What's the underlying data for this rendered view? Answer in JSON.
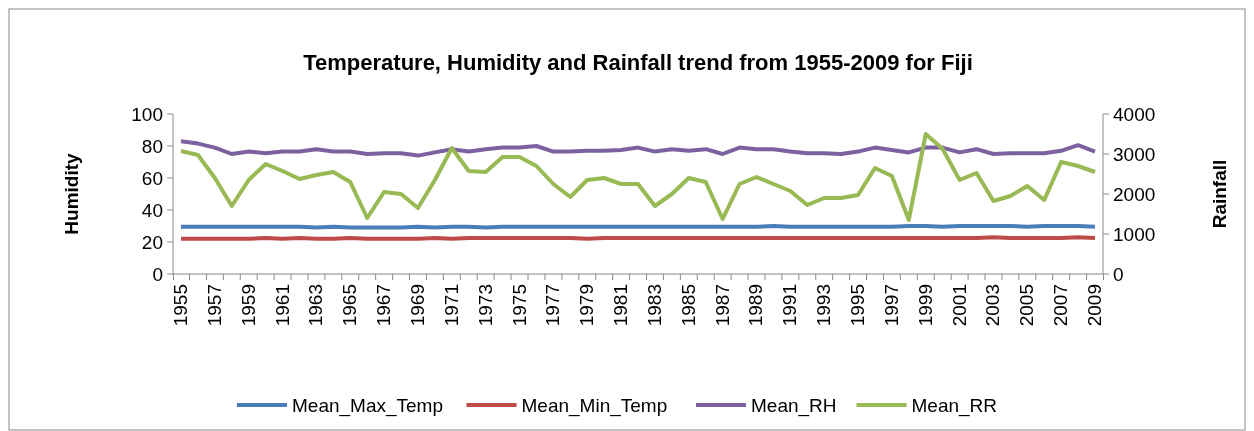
{
  "chart_data": {
    "type": "line",
    "title": "Temperature, Humidity and Rainfall trend from 1955-2009 for Fiji",
    "ylabel": "Humidity",
    "y2label": "Rainfall",
    "categories": [
      "1955",
      null,
      "1957",
      null,
      "1959",
      null,
      "1961",
      null,
      "1963",
      null,
      "1965",
      null,
      "1967",
      null,
      "1969",
      null,
      "1971",
      null,
      "1973",
      null,
      "1975",
      null,
      "1977",
      null,
      "1979",
      null,
      "1981",
      null,
      "1983",
      null,
      "1985",
      null,
      "1987",
      null,
      "1989",
      null,
      "1991",
      null,
      "1993",
      null,
      "1995",
      null,
      "1997",
      null,
      "1999",
      null,
      "2001",
      null,
      "2003",
      null,
      "2005",
      null,
      "2007",
      null,
      "2009"
    ],
    "ylim": [
      0,
      100
    ],
    "yticks": [
      0,
      20,
      40,
      60,
      80,
      100
    ],
    "y2lim": [
      0,
      4000
    ],
    "y2ticks": [
      0,
      1000,
      2000,
      3000,
      4000
    ],
    "grid": false,
    "legend": "bottom",
    "marker": "none",
    "line_style": "solid",
    "series": [
      {
        "name": "Mean_Max_Temp",
        "color": "#4a7ebb",
        "values": [
          29.5,
          29.5,
          29.5,
          29.5,
          29.5,
          29.5,
          29.5,
          29.5,
          29,
          29.5,
          29,
          29,
          29,
          29,
          29.5,
          29,
          29.5,
          29.5,
          29,
          29.5,
          29.5,
          29.5,
          29.5,
          29.5,
          29.5,
          29.5,
          29.5,
          29.5,
          29.5,
          29.5,
          29.5,
          29.5,
          29.5,
          29.5,
          29.5,
          30,
          29.5,
          29.5,
          29.5,
          29.5,
          29.5,
          29.5,
          29.5,
          30,
          30,
          29.5,
          30,
          30,
          30,
          30,
          29.5,
          30,
          30,
          30,
          29.5
        ]
      },
      {
        "name": "Mean_Min_Temp",
        "color": "#be4b48",
        "values": [
          22,
          22,
          22,
          22,
          22,
          22.5,
          22,
          22.5,
          22,
          22,
          22.5,
          22,
          22,
          22,
          22,
          22.5,
          22,
          22.5,
          22.5,
          22.5,
          22.5,
          22.5,
          22.5,
          22.5,
          22,
          22.5,
          22.5,
          22.5,
          22.5,
          22.5,
          22.5,
          22.5,
          22.5,
          22.5,
          22.5,
          22.5,
          22.5,
          22.5,
          22.5,
          22.5,
          22.5,
          22.5,
          22.5,
          22.5,
          22.5,
          22.5,
          22.5,
          22.5,
          23,
          22.5,
          22.5,
          22.5,
          22.5,
          23,
          22.5
        ]
      },
      {
        "name": "Mean_RH",
        "color": "#7d60a0",
        "values": [
          83,
          81.5,
          79,
          75,
          76.5,
          75.5,
          76.5,
          76.5,
          78,
          76.5,
          76.5,
          75,
          75.5,
          75.5,
          74,
          76,
          78,
          76.5,
          78,
          79,
          79,
          80,
          76.5,
          76.5,
          77,
          77,
          77.5,
          79,
          76.5,
          78,
          77,
          78,
          75,
          79,
          78,
          78,
          76.5,
          75.5,
          75.5,
          75,
          76.5,
          79,
          77.5,
          76,
          79,
          79,
          76,
          78,
          75,
          75.5,
          75.5,
          75.5,
          77,
          80.5,
          76.5
        ]
      },
      {
        "name": "Mean_RR",
        "color": "#98b954",
        "axis": "y2",
        "values": [
          3075,
          2975,
          2400,
          1700,
          2350,
          2750,
          2575,
          2375,
          2475,
          2550,
          2300,
          1400,
          2050,
          2000,
          1650,
          2350,
          3150,
          2575,
          2550,
          2925,
          2925,
          2700,
          2250,
          1925,
          2350,
          2400,
          2250,
          2250,
          1700,
          2000,
          2400,
          2300,
          1375,
          2250,
          2425,
          2250,
          2075,
          1725,
          1900,
          1900,
          1975,
          2650,
          2450,
          1350,
          3500,
          3125,
          2350,
          2525,
          1825,
          1950,
          2200,
          1850,
          2800,
          2700,
          2550
        ]
      }
    ]
  }
}
